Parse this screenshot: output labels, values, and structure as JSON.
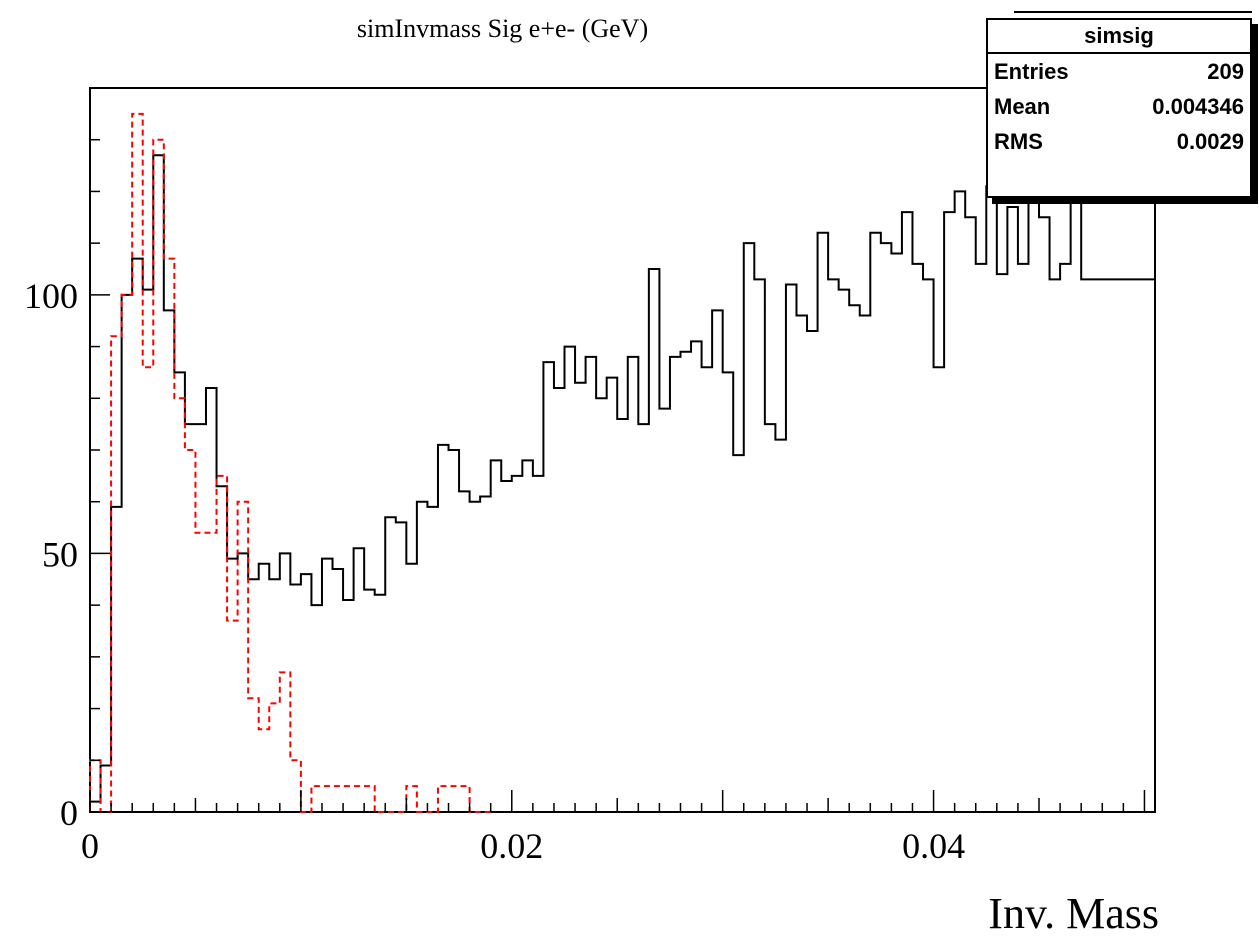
{
  "chart_data": {
    "type": "histogram",
    "title": "simInvmass Sig e+e- (GeV)",
    "xlabel": "Inv. Mass",
    "ylabel": "",
    "xlim": [
      0,
      0.0505
    ],
    "ylim": [
      0,
      140
    ],
    "bin_width": 0.0005,
    "x_ticks": [
      {
        "v": 0,
        "label": "0"
      },
      {
        "v": 0.02,
        "label": "0.02"
      },
      {
        "v": 0.04,
        "label": "0.04"
      }
    ],
    "y_ticks": [
      {
        "v": 0,
        "label": "0"
      },
      {
        "v": 50,
        "label": "50"
      },
      {
        "v": 100,
        "label": "100"
      }
    ],
    "series": [
      {
        "style": "solid",
        "color": "#000000",
        "values": [
          2,
          9,
          59,
          100,
          107,
          101,
          127,
          97,
          85,
          75,
          75,
          82,
          63,
          49,
          50,
          45,
          48,
          45,
          50,
          44,
          46,
          40,
          49,
          47,
          41,
          51,
          43,
          42,
          57,
          56,
          48,
          60,
          59,
          71,
          70,
          62,
          60,
          61,
          68,
          64,
          65,
          68,
          65,
          87,
          82,
          90,
          83,
          88,
          80,
          84,
          76,
          88,
          75,
          105,
          78,
          88,
          89,
          91,
          86,
          97,
          85,
          69,
          110,
          103,
          75,
          72,
          102,
          96,
          93,
          112,
          103,
          101,
          98,
          96,
          112,
          110,
          108,
          116,
          106,
          103,
          86,
          116,
          120,
          115,
          106,
          121,
          104,
          117,
          106,
          121,
          115,
          103,
          106,
          128,
          103
        ],
        "last_to_edge": true
      },
      {
        "style": "dashed",
        "color": "#ff0000",
        "values": [
          10,
          0,
          92,
          100,
          135,
          86,
          130,
          107,
          80,
          70,
          54,
          54,
          65,
          37,
          60,
          22,
          16,
          21,
          27,
          10,
          0,
          5,
          5,
          5,
          5,
          5,
          5,
          0,
          0,
          0,
          5,
          0,
          0,
          5,
          5,
          5,
          0,
          0
        ]
      }
    ],
    "stats_box": {
      "title": "simsig",
      "rows": [
        {
          "label": "Entries",
          "value": "209"
        },
        {
          "label": "Mean",
          "value": "0.004346"
        },
        {
          "label": "RMS",
          "value": "0.0029"
        }
      ]
    },
    "grid": false
  }
}
